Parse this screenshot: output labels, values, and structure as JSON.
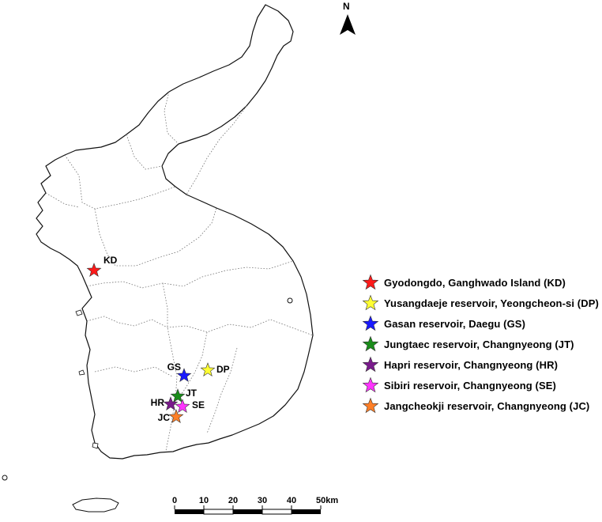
{
  "north_arrow": {
    "label": "N",
    "icon": "north-arrow-icon"
  },
  "sites": [
    {
      "code": "KD",
      "name": "Gyodongdo, Ganghwado Island (KD)",
      "color": "#ff1a1a"
    },
    {
      "code": "DP",
      "name": "Yusangdaeje  reservoir, Yeongcheon-si (DP)",
      "color": "#ffff33"
    },
    {
      "code": "GS",
      "name": "Gasan reservoir, Daegu (GS)",
      "color": "#1a1aff"
    },
    {
      "code": "JT",
      "name": "Jungtaec reservoir, Changnyeong (JT)",
      "color": "#1a8c1a"
    },
    {
      "code": "HR",
      "name": "Hapri reservoir, Changnyeong (HR)",
      "color": "#7a1a8c"
    },
    {
      "code": "SE",
      "name": "Sibiri reservoir, Changnyeong (SE)",
      "color": "#ff33ff"
    },
    {
      "code": "JC",
      "name": "Jangcheokji reservoir, Changnyeong (JC)",
      "color": "#ff7f27"
    }
  ],
  "scale_bar": {
    "ticks": [
      "0",
      "10",
      "20",
      "30",
      "40",
      "50km"
    ]
  }
}
